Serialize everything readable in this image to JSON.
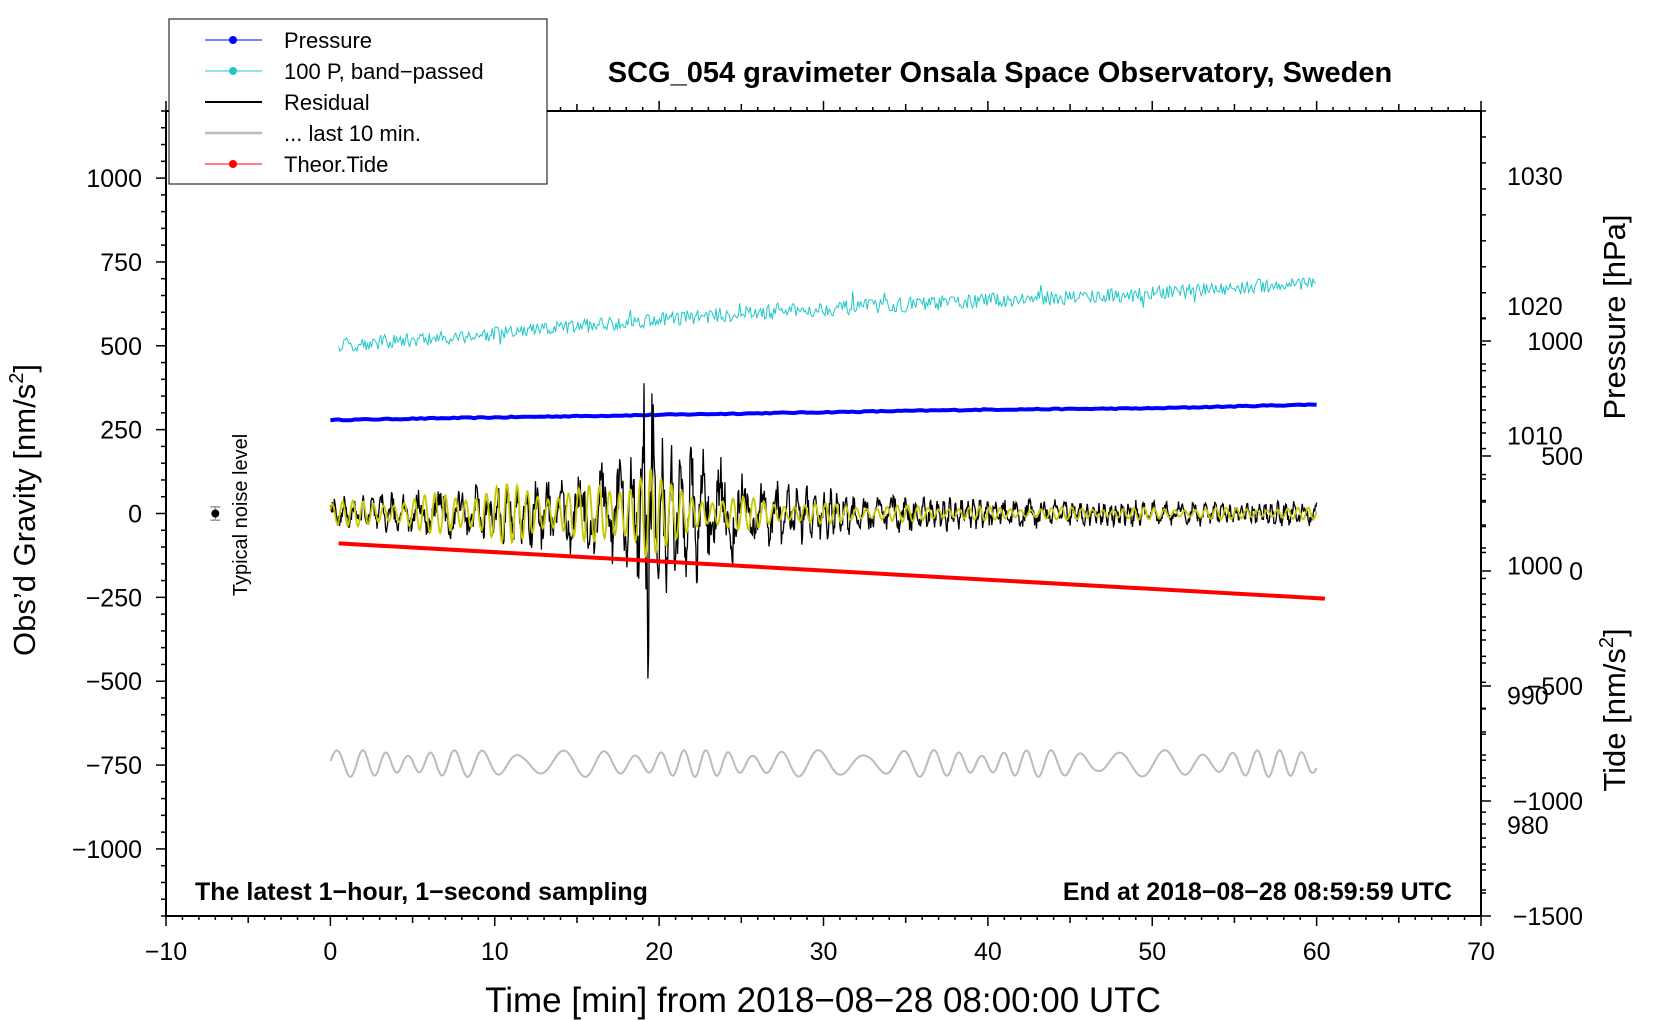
{
  "chart_data": {
    "type": "line",
    "title": "SCG_054 gravimeter Onsala Space Observatory, Sweden",
    "xlabel": "Time [min] from 2018−08−28 08:00:00 UTC",
    "ylabel_left_main": "Obs’d Gravity [nm/s",
    "ylabel_left_sup": "2",
    "ylabel_left_close": "]",
    "ylabel_right_pressure": "Pressure [hPa]",
    "ylabel_right_tide_main": "Tide [nm/s",
    "ylabel_right_tide_sup": "2",
    "ylabel_right_tide_close": "]",
    "xlim": [
      -10,
      70
    ],
    "ylim_left": [
      -1200,
      1200
    ],
    "ylim_pressure": [
      973,
      1035
    ],
    "ylim_tide": [
      -1500,
      2000
    ],
    "x_ticks": [
      "−10",
      "0",
      "10",
      "20",
      "30",
      "40",
      "50",
      "60",
      "70"
    ],
    "x_tick_values": [
      -10,
      0,
      10,
      20,
      30,
      40,
      50,
      60,
      70
    ],
    "y_left_ticks": [
      "1000",
      "750",
      "500",
      "250",
      "0",
      "−250",
      "−500",
      "−750",
      "−1000"
    ],
    "y_left_tick_values": [
      1000,
      750,
      500,
      250,
      0,
      -250,
      -500,
      -750,
      -1000
    ],
    "y_pressure_ticks": [
      "1030",
      "1020",
      "1010",
      "1000",
      "990",
      "980"
    ],
    "y_pressure_tick_values": [
      1030,
      1020,
      1010,
      1000,
      990,
      980
    ],
    "y_tide_ticks": [
      "1000",
      "500",
      "0",
      "−500",
      "−1000",
      "−1500"
    ],
    "y_tide_tick_values": [
      1000,
      500,
      0,
      -500,
      -1000,
      -1500
    ],
    "legend": {
      "placement": "top-left",
      "entries": [
        {
          "label": "Pressure",
          "color": "#0000ff",
          "style": "line-dot"
        },
        {
          "label": "100 P, band−passed",
          "color": "#20c8c8",
          "style": "line-dot"
        },
        {
          "label": "Residual",
          "color": "#000000",
          "style": "line"
        },
        {
          "label": "... last 10 min.",
          "color": "#bbbbbb",
          "style": "line"
        },
        {
          "label": "Theor.Tide",
          "color": "#ff0000",
          "style": "line-dot"
        }
      ]
    },
    "annotations": {
      "bottom_left": "The latest 1−hour, 1−second sampling",
      "bottom_right": "End at 2018−08−28 08:59:59 UTC",
      "noise_label": "Typical noise level",
      "noise_x": -7,
      "noise_y": 0,
      "noise_err": 20
    },
    "series": [
      {
        "name": "Pressure",
        "axis": "pressure",
        "color": "#0000ff",
        "x": [
          0,
          10,
          20,
          30,
          40,
          50,
          60
        ],
        "values": [
          1011.2,
          1011.4,
          1011.6,
          1011.8,
          1012.0,
          1012.1,
          1012.4
        ]
      },
      {
        "name": "100 P, band-passed",
        "axis": "left",
        "color": "#20c8c8",
        "x": [
          0,
          10,
          20,
          30,
          40,
          50,
          60
        ],
        "values": [
          500,
          535,
          580,
          610,
          635,
          655,
          690
        ],
        "noise": 22
      },
      {
        "name": "Residual",
        "axis": "left",
        "color": "#000000",
        "x": [
          0,
          5,
          10,
          15,
          17,
          18.5,
          19.3,
          20,
          21,
          23,
          25,
          30,
          35,
          40,
          50,
          60
        ],
        "envelope": [
          50,
          70,
          100,
          130,
          170,
          260,
          520,
          280,
          200,
          230,
          130,
          80,
          60,
          50,
          40,
          40
        ]
      },
      {
        "name": "Residual (band-passed)",
        "axis": "left",
        "color": "#c8c800",
        "x": [
          0,
          5,
          10,
          15,
          17,
          18.5,
          19.3,
          20,
          21,
          23,
          25,
          30,
          35,
          40,
          50,
          60
        ],
        "envelope": [
          35,
          50,
          90,
          80,
          90,
          150,
          190,
          110,
          80,
          60,
          50,
          30,
          25,
          20,
          18,
          18
        ]
      },
      {
        "name": "Theor.Tide",
        "axis": "tide",
        "color": "#ff0000",
        "x": [
          0.5,
          60.5
        ],
        "values": [
          120,
          -120
        ]
      },
      {
        "name": "... last 10 min.",
        "axis": "left",
        "color": "#bbbbbb",
        "baseline": -745,
        "amplitude": 40
      }
    ]
  }
}
